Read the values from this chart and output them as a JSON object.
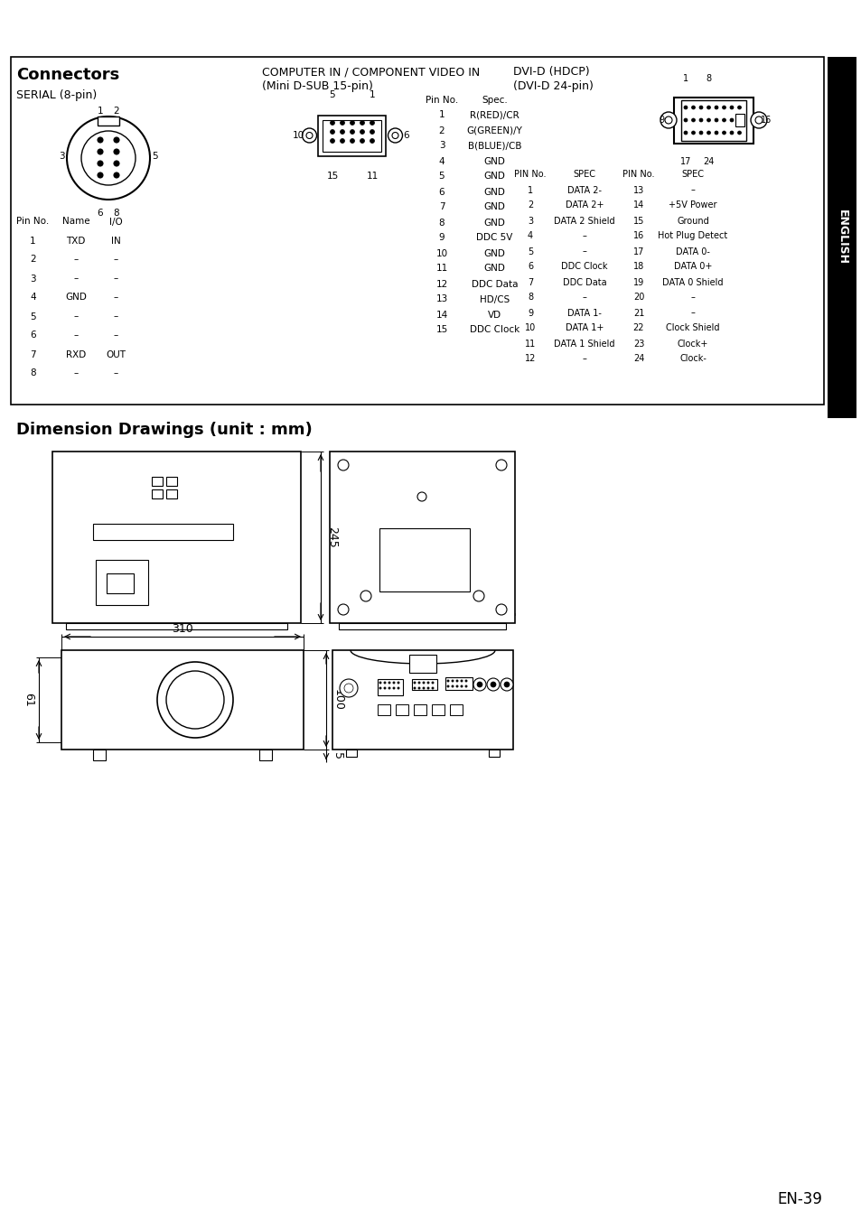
{
  "page_bg": "#ffffff",
  "section_title": "Connectors",
  "serial_title": "SERIAL (8-pin)",
  "computer_in_line1": "COMPUTER IN / COMPONENT VIDEO IN",
  "computer_in_line2": "(Mini D-SUB 15-pin)",
  "dvi_line1": "DVI-D (HDCP)",
  "dvi_line2": "(DVI-D 24-pin)",
  "dim_title": "Dimension Drawings (unit : mm)",
  "page_num": "EN-39",
  "english_label": "ENGLISH",
  "serial_table": {
    "headers": [
      "Pin No.",
      "Name",
      "I/O"
    ],
    "rows": [
      [
        "1",
        "TXD",
        "IN"
      ],
      [
        "2",
        "–",
        "–"
      ],
      [
        "3",
        "–",
        "–"
      ],
      [
        "4",
        "GND",
        "–"
      ],
      [
        "5",
        "–",
        "–"
      ],
      [
        "6",
        "–",
        "–"
      ],
      [
        "7",
        "RXD",
        "OUT"
      ],
      [
        "8",
        "–",
        "–"
      ]
    ]
  },
  "minisub_table": {
    "headers": [
      "Pin No.",
      "Spec."
    ],
    "rows": [
      [
        "1",
        "R(RED)/CR"
      ],
      [
        "2",
        "G(GREEN)/Y"
      ],
      [
        "3",
        "B(BLUE)/CB"
      ],
      [
        "4",
        "GND"
      ],
      [
        "5",
        "GND"
      ],
      [
        "6",
        "GND"
      ],
      [
        "7",
        "GND"
      ],
      [
        "8",
        "GND"
      ],
      [
        "9",
        "DDC 5V"
      ],
      [
        "10",
        "GND"
      ],
      [
        "11",
        "GND"
      ],
      [
        "12",
        "DDC Data"
      ],
      [
        "13",
        "HD/CS"
      ],
      [
        "14",
        "VD"
      ],
      [
        "15",
        "DDC Clock"
      ]
    ]
  },
  "dvi_table": {
    "headers": [
      "PIN No.",
      "SPEC",
      "PIN No.",
      "SPEC"
    ],
    "rows": [
      [
        "1",
        "DATA 2-",
        "13",
        "–"
      ],
      [
        "2",
        "DATA 2+",
        "14",
        "+5V Power"
      ],
      [
        "3",
        "DATA 2 Shield",
        "15",
        "Ground"
      ],
      [
        "4",
        "–",
        "16",
        "Hot Plug Detect"
      ],
      [
        "5",
        "–",
        "17",
        "DATA 0-"
      ],
      [
        "6",
        "DDC Clock",
        "18",
        "DATA 0+"
      ],
      [
        "7",
        "DDC Data",
        "19",
        "DATA 0 Shield"
      ],
      [
        "8",
        "–",
        "20",
        "–"
      ],
      [
        "9",
        "DATA 1-",
        "21",
        "–"
      ],
      [
        "10",
        "DATA 1+",
        "22",
        "Clock Shield"
      ],
      [
        "11",
        "DATA 1 Shield",
        "23",
        "Clock+"
      ],
      [
        "12",
        "–",
        "24",
        "Clock-"
      ]
    ]
  },
  "dim_245": "245",
  "dim_310": "310",
  "dim_100": "100",
  "dim_5": "5",
  "dim_61": "61"
}
